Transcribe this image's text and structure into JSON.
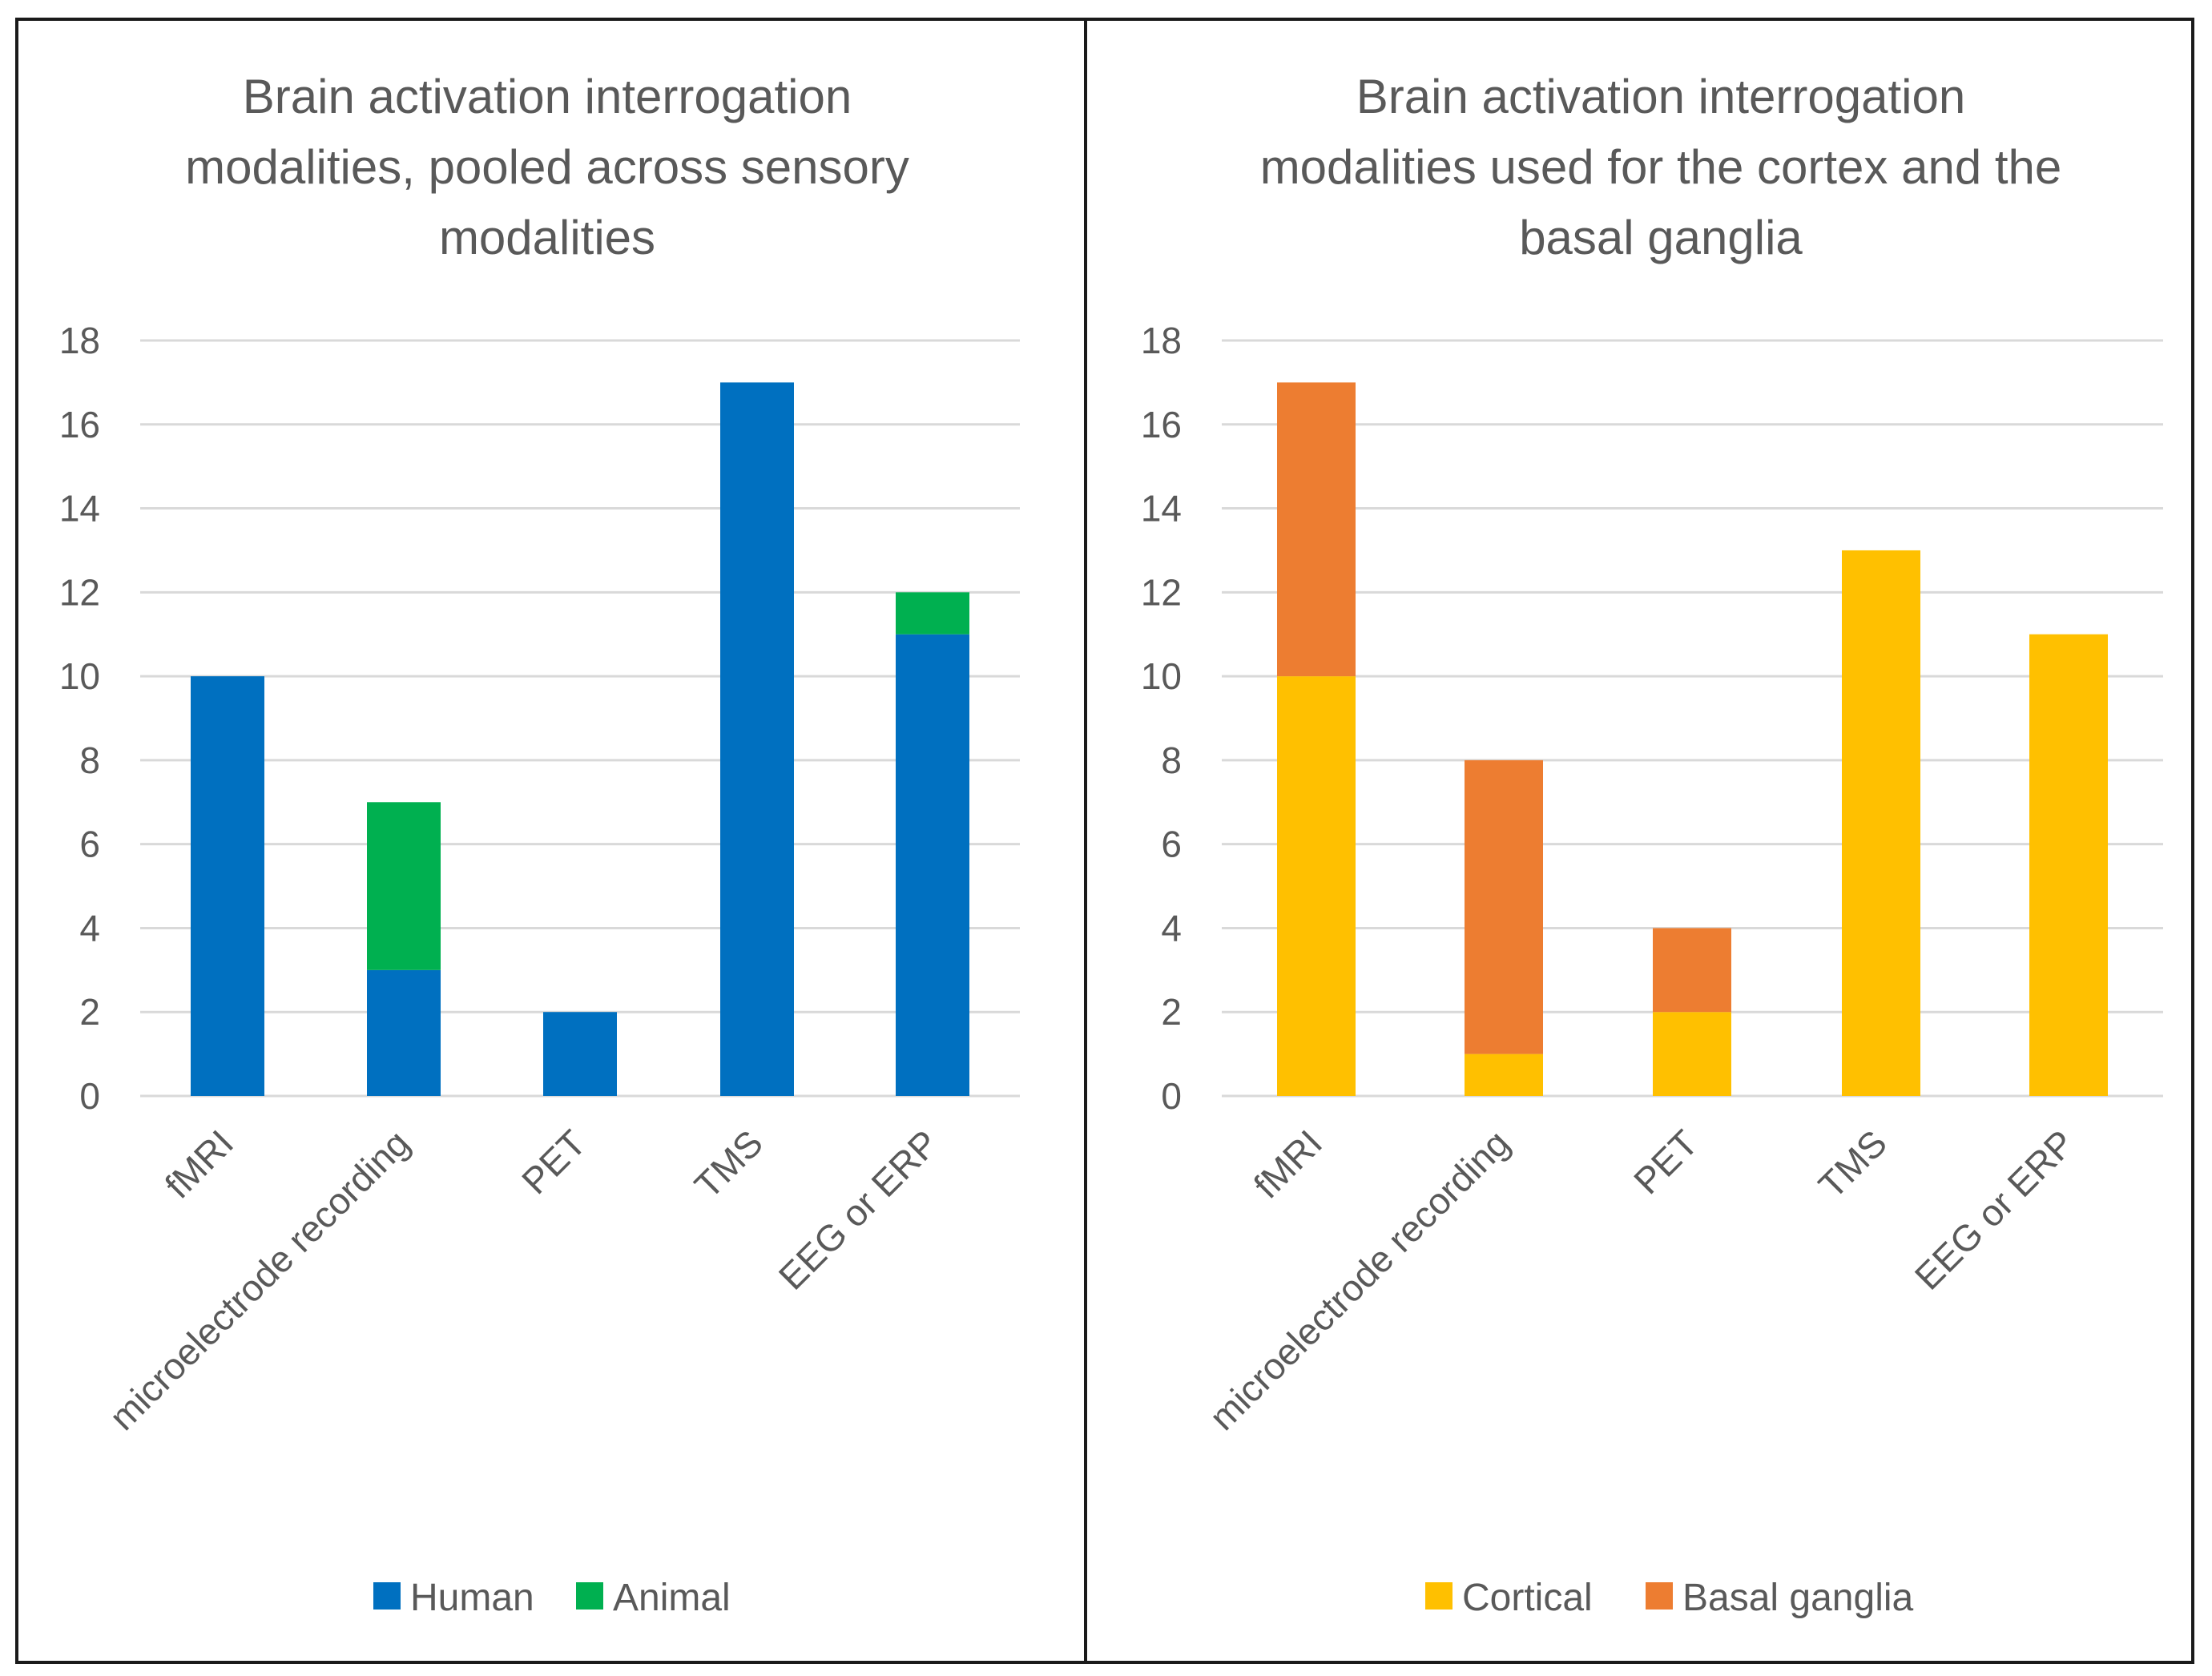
{
  "chart_data": [
    {
      "type": "bar",
      "stacked": true,
      "title": "Brain activation interrogation modalities, pooled across sensory modalities",
      "title_lines": [
        "Brain activation interrogation",
        "modalities, pooled across sensory",
        "modalities"
      ],
      "categories": [
        "fMRI",
        "microelectrode recording",
        "PET",
        "TMS",
        "EEG or ERP"
      ],
      "series": [
        {
          "name": "Human",
          "color": "#0070C0",
          "values": [
            10,
            3,
            2,
            17,
            11
          ]
        },
        {
          "name": "Animal",
          "color": "#00B050",
          "values": [
            0,
            4,
            0,
            0,
            1
          ]
        }
      ],
      "ylim": [
        0,
        18
      ],
      "yticks": [
        "0",
        "2",
        "4",
        "6",
        "8",
        "10",
        "12",
        "14",
        "16",
        "18"
      ],
      "grid": true,
      "legend": "bottom-center",
      "xlabel": "",
      "ylabel": ""
    },
    {
      "type": "bar",
      "stacked": true,
      "title": "Brain activation interrogation modalities used for the cortex and the basal ganglia",
      "title_lines": [
        "Brain activation interrogation",
        "modalities used for the cortex and the",
        "basal ganglia"
      ],
      "categories": [
        "fMRI",
        "microelectrode recording",
        "PET",
        "TMS",
        "EEG or ERP"
      ],
      "series": [
        {
          "name": "Cortical",
          "color": "#FFC000",
          "values": [
            10,
            1,
            2,
            13,
            11
          ]
        },
        {
          "name": "Basal ganglia",
          "color": "#ED7D31",
          "values": [
            7,
            7,
            2,
            0,
            0
          ]
        }
      ],
      "ylim": [
        0,
        18
      ],
      "yticks": [
        "0",
        "2",
        "4",
        "6",
        "8",
        "10",
        "12",
        "14",
        "16",
        "18"
      ],
      "grid": true,
      "legend": "bottom-center",
      "xlabel": "",
      "ylabel": ""
    }
  ]
}
